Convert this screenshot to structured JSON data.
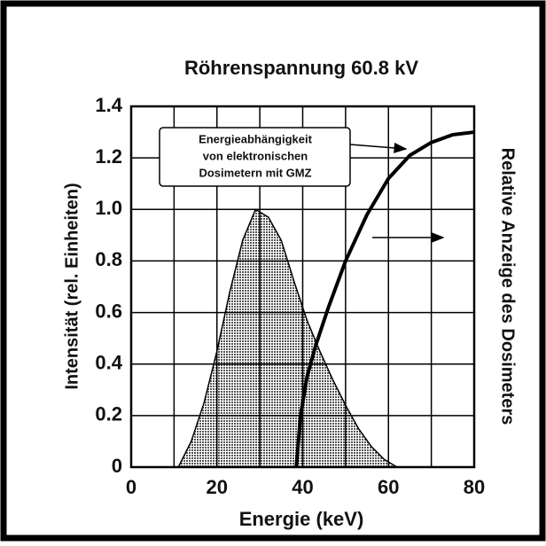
{
  "chart_data": {
    "type": "line",
    "title": "Röhrenspannung 60.8 kV",
    "xlabel": "Energie (keV)",
    "ylabel": "Intensität (rel. Einheiten)",
    "y2label": "Relative Anzeige des Dosimeters",
    "annotation": [
      "Energieabhängigkeit",
      "von elektronischen",
      "Dosimetern mit GMZ"
    ],
    "xlim": [
      0,
      80
    ],
    "xticks": [
      0,
      20,
      40,
      60,
      80
    ],
    "ylim": [
      0,
      1.4
    ],
    "yticks": [
      0,
      0.2,
      0.4,
      0.6,
      0.8,
      {
        "value": 1,
        "label": "1.0"
      },
      1.2,
      1.4
    ],
    "grid": true,
    "series": [
      {
        "kind": "area",
        "color": "#b8b8b8",
        "x": [
          11,
          14,
          17,
          20,
          23,
          26,
          29,
          32,
          35,
          38,
          41,
          44,
          47,
          50,
          53,
          56,
          59,
          62
        ],
        "values": [
          0,
          0.1,
          0.25,
          0.45,
          0.68,
          0.88,
          1.0,
          0.97,
          0.88,
          0.72,
          0.57,
          0.45,
          0.34,
          0.24,
          0.15,
          0.08,
          0.03,
          0
        ]
      },
      {
        "kind": "line",
        "color": "#000000",
        "x": [
          38.5,
          39.5,
          41,
          43,
          46,
          50,
          55,
          60,
          65,
          70,
          75,
          80
        ],
        "values": [
          0,
          0.2,
          0.35,
          0.47,
          0.62,
          0.8,
          0.98,
          1.12,
          1.21,
          1.26,
          1.29,
          1.3
        ]
      }
    ]
  }
}
